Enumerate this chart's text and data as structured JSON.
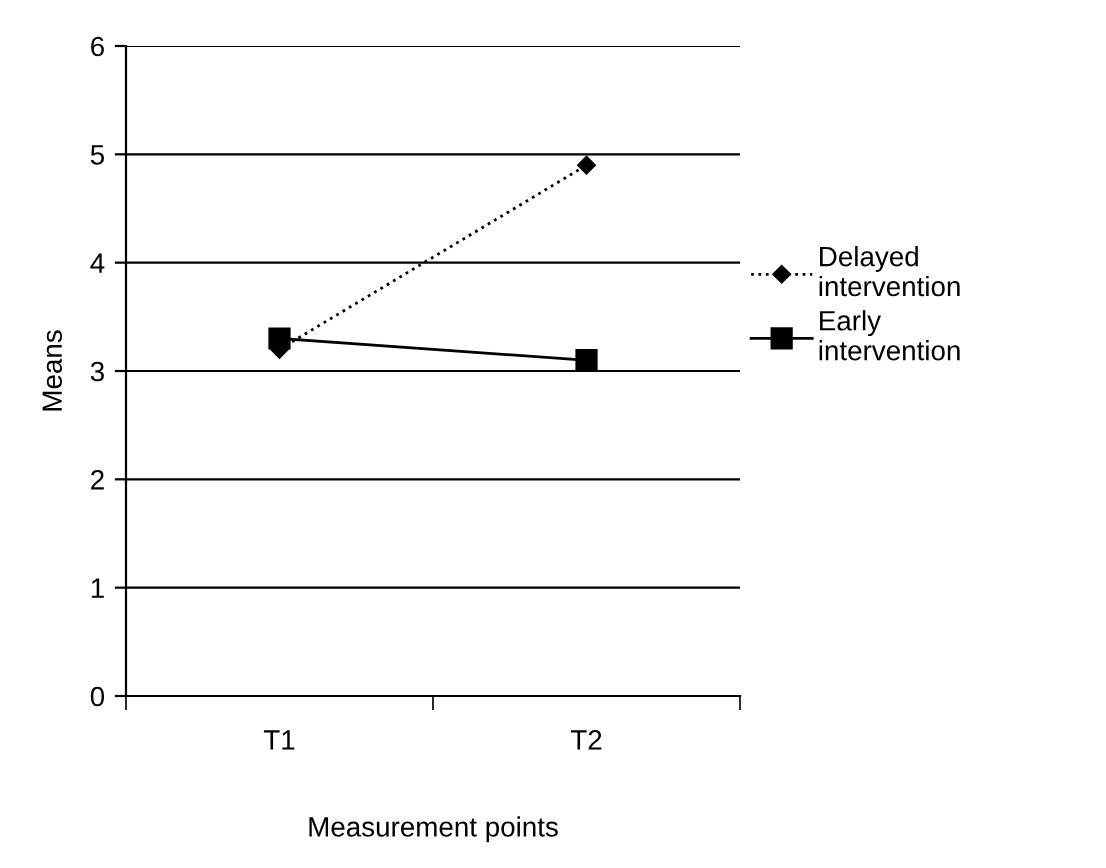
{
  "chart_data": {
    "type": "line",
    "xlabel": "Measurement points",
    "ylabel": "Means",
    "categories": [
      "T1",
      "T2"
    ],
    "series": [
      {
        "name": "Delayed intervention",
        "color": "#000000",
        "values": [
          3.2,
          4.9
        ],
        "marker": "diamond",
        "line_style": "dotted"
      },
      {
        "name": "Early intervention",
        "color": "#000000",
        "values": [
          3.3,
          3.1
        ],
        "marker": "square",
        "line_style": "solid"
      }
    ],
    "ylim": [
      0,
      6
    ],
    "yticks": [
      0,
      1,
      2,
      3,
      4,
      5,
      6
    ],
    "grid": "y",
    "legend": "right"
  }
}
